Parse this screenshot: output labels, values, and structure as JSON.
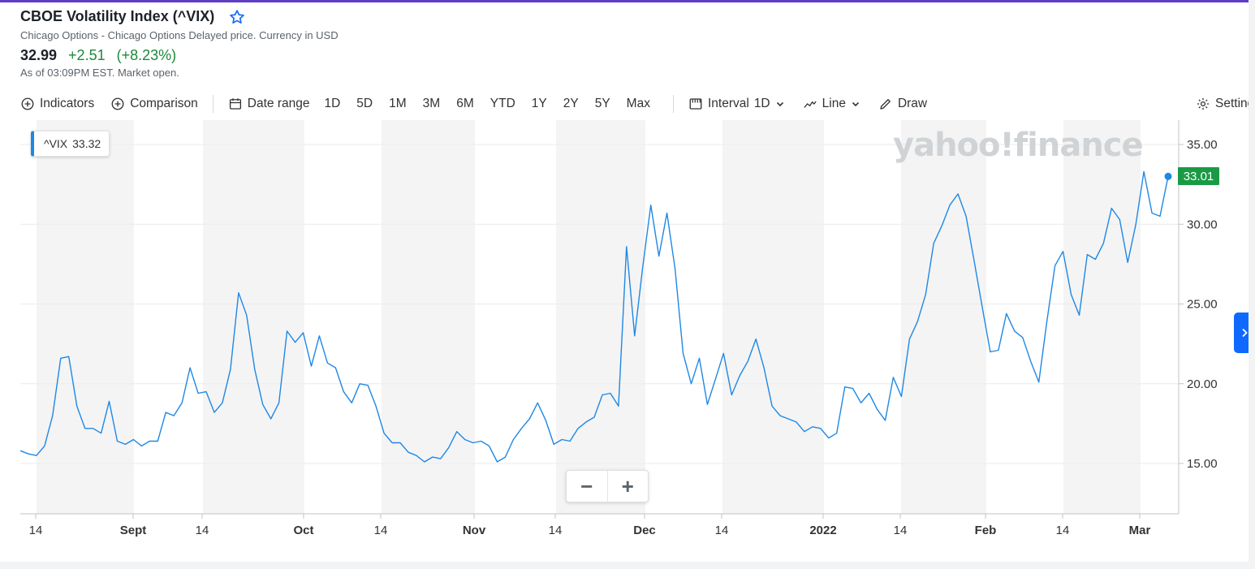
{
  "header": {
    "title": "CBOE Volatility Index (^VIX)",
    "subtitle": "Chicago Options - Chicago Options Delayed price. Currency in USD",
    "price": "32.99",
    "change": "+2.51",
    "change_pct": "(+8.23%)",
    "as_of": "As of 03:09PM EST. Market open."
  },
  "toolbar": {
    "indicators": "Indicators",
    "comparison": "Comparison",
    "date_range": "Date range",
    "ranges": [
      "1D",
      "5D",
      "1M",
      "3M",
      "6M",
      "YTD",
      "1Y",
      "2Y",
      "5Y",
      "Max"
    ],
    "interval_label": "Interval",
    "interval_value": "1D",
    "chart_type": "Line",
    "draw": "Draw",
    "settings": "Settings"
  },
  "hover_tag": {
    "symbol": "^VIX",
    "value": "33.32"
  },
  "last_tag": "33.01",
  "watermark": "yahoo!finance",
  "zoom": {
    "minus": "−",
    "plus": "+"
  },
  "colors": {
    "line": "#1e88e5",
    "positive": "#1a8a3a",
    "last_tag_bg": "#1a9a45",
    "shade": "#f4f4f4"
  },
  "chart_data": {
    "type": "line",
    "title": "",
    "xlabel": "",
    "ylabel": "",
    "ylim": [
      12.0,
      36.5
    ],
    "y_ticks": [
      15,
      20,
      25,
      30,
      35
    ],
    "y_tick_labels": [
      "15.00",
      "20.00",
      "25.00",
      "30.00",
      "35.00"
    ],
    "x_tick_labels": [
      "14",
      "Sept",
      "14",
      "Oct",
      "14",
      "Nov",
      "14",
      "Dec",
      "14",
      "2022",
      "14",
      "Feb",
      "14",
      "Mar"
    ],
    "series": [
      {
        "values": [
          15.8,
          15.6,
          15.5,
          16.1,
          18.0,
          21.6,
          21.7,
          18.6,
          17.2,
          17.2,
          16.9,
          18.9,
          16.4,
          16.2,
          16.5,
          16.1,
          16.4,
          16.4,
          18.2,
          18.0,
          18.8,
          21.0,
          19.4,
          19.5,
          18.2,
          18.8,
          20.9,
          25.7,
          24.3,
          20.9,
          18.7,
          17.8,
          18.8,
          23.3,
          22.6,
          23.2,
          21.1,
          23.0,
          21.3,
          21.0,
          19.5,
          18.8,
          20.0,
          19.9,
          18.6,
          16.9,
          16.3,
          16.3,
          15.7,
          15.5,
          15.1,
          15.4,
          15.3,
          16.0,
          17.0,
          16.5,
          16.3,
          16.4,
          16.1,
          15.1,
          15.4,
          16.5,
          17.2,
          17.8,
          18.8,
          17.7,
          16.2,
          16.5,
          16.4,
          17.2,
          17.6,
          17.9,
          19.3,
          19.4,
          18.6,
          28.6,
          23.0,
          27.3,
          31.2,
          28.0,
          30.7,
          27.2,
          21.9,
          20.0,
          21.6,
          18.7,
          20.3,
          21.9,
          19.3,
          20.5,
          21.4,
          22.8,
          21.0,
          18.6,
          18.0,
          17.8,
          17.6,
          17.0,
          17.3,
          17.2,
          16.6,
          16.9,
          19.8,
          19.7,
          18.8,
          19.4,
          18.4,
          17.7,
          20.4,
          19.2,
          22.8,
          23.9,
          25.6,
          28.8,
          29.9,
          31.2,
          31.9,
          30.5,
          27.7,
          24.8,
          22.0,
          22.1,
          24.4,
          23.3,
          22.9,
          21.4,
          20.1,
          23.9,
          27.4,
          28.3,
          25.6,
          24.3,
          28.1,
          27.8,
          28.8,
          31.0,
          30.3,
          27.6,
          30.0,
          33.3,
          30.7,
          30.5,
          33.0
        ]
      }
    ],
    "last_point_label": "33.01",
    "grid": true,
    "shaded_bands": true
  }
}
